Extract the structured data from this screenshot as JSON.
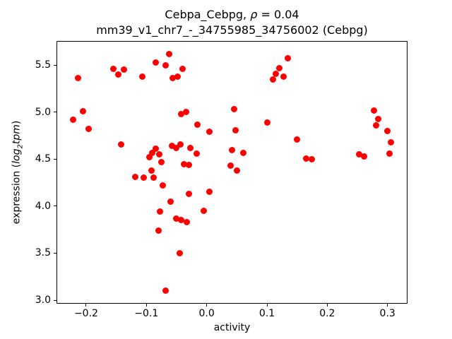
{
  "figure": {
    "title_prefix": "Cebpa_Cebpg, ",
    "title_rho": "ρ",
    "title_suffix": " = 0.04",
    "subtitle": "mm39_v1_chr7_-_34755985_34756002 (Cebpg)",
    "xlabel": "activity",
    "ylabel_prefix": "expression (",
    "ylabel_log": "log",
    "ylabel_sub": "2",
    "ylabel_tpm": "tpm",
    "ylabel_suffix": ")"
  },
  "chart_data": {
    "type": "scatter",
    "title": "Cebpa_Cebpg, ρ = 0.04",
    "subtitle": "mm39_v1_chr7_-_34755985_34756002 (Cebpg)",
    "xlabel": "activity",
    "ylabel": "expression (log2tpm)",
    "marker_color": "#ff0000",
    "marker_size_px": 9,
    "grid": false,
    "legend": "none",
    "xlim": [
      -0.248,
      0.332
    ],
    "ylim": [
      2.97,
      5.75
    ],
    "x_ticks": [
      -0.2,
      -0.1,
      0.0,
      0.1,
      0.2,
      0.3
    ],
    "x_tick_labels": [
      "−0.2",
      "−0.1",
      "0.0",
      "0.1",
      "0.2",
      "0.3"
    ],
    "y_ticks": [
      3.0,
      3.5,
      4.0,
      4.5,
      5.0,
      5.5
    ],
    "y_tick_labels": [
      "3.0",
      "3.5",
      "4.0",
      "4.5",
      "5.0",
      "5.5"
    ],
    "points": [
      [
        -0.213,
        5.36
      ],
      [
        -0.222,
        4.92
      ],
      [
        -0.205,
        5.01
      ],
      [
        -0.196,
        4.82
      ],
      [
        -0.155,
        5.46
      ],
      [
        -0.147,
        5.4
      ],
      [
        -0.137,
        5.45
      ],
      [
        -0.142,
        4.66
      ],
      [
        -0.107,
        5.38
      ],
      [
        -0.085,
        5.53
      ],
      [
        -0.068,
        5.5
      ],
      [
        -0.062,
        5.62
      ],
      [
        -0.04,
        5.46
      ],
      [
        -0.048,
        5.38
      ],
      [
        -0.057,
        5.36
      ],
      [
        -0.118,
        4.31
      ],
      [
        -0.105,
        4.3
      ],
      [
        -0.088,
        4.3
      ],
      [
        -0.095,
        4.52
      ],
      [
        -0.09,
        4.57
      ],
      [
        -0.084,
        4.61
      ],
      [
        -0.079,
        4.55
      ],
      [
        -0.075,
        4.47
      ],
      [
        -0.092,
        4.38
      ],
      [
        -0.073,
        4.22
      ],
      [
        -0.078,
        3.94
      ],
      [
        -0.08,
        3.74
      ],
      [
        -0.068,
        3.1
      ],
      [
        -0.058,
        4.64
      ],
      [
        -0.05,
        4.62
      ],
      [
        -0.043,
        4.66
      ],
      [
        -0.06,
        4.05
      ],
      [
        -0.05,
        3.87
      ],
      [
        -0.042,
        3.85
      ],
      [
        -0.045,
        3.5
      ],
      [
        -0.038,
        4.45
      ],
      [
        -0.029,
        4.44
      ],
      [
        -0.042,
        4.98
      ],
      [
        -0.034,
        5.0
      ],
      [
        -0.027,
        4.62
      ],
      [
        -0.03,
        4.13
      ],
      [
        -0.033,
        3.83
      ],
      [
        -0.015,
        4.87
      ],
      [
        -0.017,
        4.56
      ],
      [
        0.005,
        4.79
      ],
      [
        0.004,
        4.15
      ],
      [
        -0.005,
        3.95
      ],
      [
        0.045,
        5.03
      ],
      [
        0.048,
        4.81
      ],
      [
        0.042,
        4.6
      ],
      [
        0.04,
        4.43
      ],
      [
        0.05,
        4.38
      ],
      [
        0.061,
        4.57
      ],
      [
        0.1,
        4.89
      ],
      [
        0.11,
        5.35
      ],
      [
        0.115,
        5.41
      ],
      [
        0.121,
        5.47
      ],
      [
        0.128,
        5.38
      ],
      [
        0.135,
        5.57
      ],
      [
        0.15,
        4.71
      ],
      [
        0.165,
        4.51
      ],
      [
        0.174,
        4.5
      ],
      [
        0.253,
        4.55
      ],
      [
        0.261,
        4.53
      ],
      [
        0.278,
        5.02
      ],
      [
        0.284,
        4.93
      ],
      [
        0.281,
        4.86
      ],
      [
        0.3,
        4.8
      ],
      [
        0.306,
        4.68
      ],
      [
        0.303,
        4.56
      ]
    ]
  }
}
